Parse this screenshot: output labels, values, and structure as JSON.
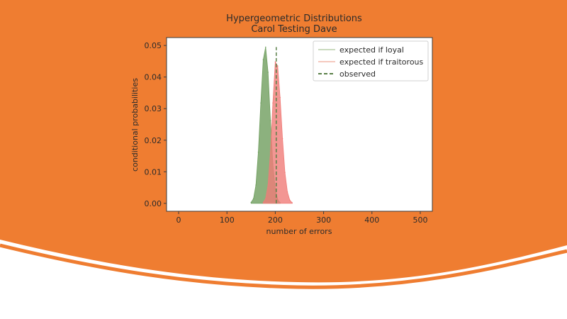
{
  "slide": {
    "background_color": "#ef7d31",
    "curve_color": "#ffffff"
  },
  "chart_data": {
    "type": "area",
    "title": "Hypergeometric Distributions",
    "subtitle": "Carol Testing Dave",
    "xlabel": "number of errors",
    "ylabel": "conditional probabilities",
    "xlim": [
      -25,
      525
    ],
    "ylim": [
      -0.0025,
      0.0525
    ],
    "xticks": [
      0,
      100,
      200,
      300,
      400,
      500
    ],
    "xtick_labels": [
      "0",
      "100",
      "200",
      "300",
      "400",
      "500"
    ],
    "yticks": [
      0.0,
      0.01,
      0.02,
      0.03,
      0.04,
      0.05
    ],
    "ytick_labels": [
      "0.00",
      "0.01",
      "0.02",
      "0.03",
      "0.04",
      "0.05"
    ],
    "grid": false,
    "legend_position": "top-right",
    "series": [
      {
        "name": "expected if loyal",
        "color": "#6f9e5e",
        "fill_opacity": 0.8,
        "x": [
          150,
          155,
          160,
          165,
          170,
          175,
          180,
          185,
          190,
          195,
          200,
          205,
          210
        ],
        "values": [
          0.0003,
          0.0015,
          0.0058,
          0.0162,
          0.0318,
          0.0455,
          0.0495,
          0.0415,
          0.0262,
          0.0125,
          0.0045,
          0.0012,
          0.0002
        ]
      },
      {
        "name": "expected if traitorous",
        "color": "#f07c78",
        "fill_opacity": 0.8,
        "x": [
          175,
          180,
          185,
          190,
          195,
          200,
          205,
          210,
          215,
          220,
          225,
          230,
          235
        ],
        "values": [
          0.0003,
          0.0015,
          0.0058,
          0.0162,
          0.0318,
          0.0448,
          0.0435,
          0.0335,
          0.0205,
          0.0098,
          0.0036,
          0.001,
          0.0002
        ]
      },
      {
        "name": "observed",
        "color": "#5a8048",
        "style": "dashed",
        "x": [
          202,
          202
        ],
        "values": [
          0.0,
          0.0495
        ]
      }
    ]
  }
}
